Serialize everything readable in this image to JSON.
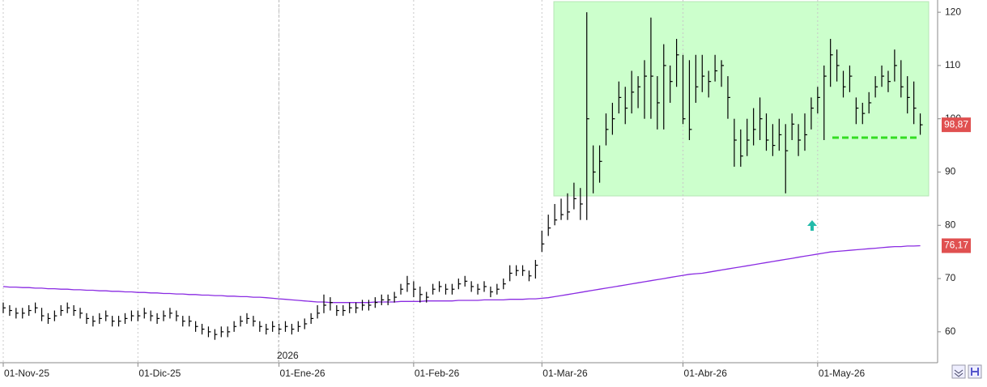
{
  "chart_data": {
    "type": "ohlc",
    "categories": [
      "01-Nov-25",
      null,
      null,
      null,
      null,
      null,
      null,
      null,
      null,
      null,
      null,
      null,
      null,
      null,
      null,
      null,
      null,
      null,
      null,
      null,
      null,
      "01-Dic-25",
      null,
      null,
      null,
      null,
      null,
      null,
      null,
      null,
      null,
      null,
      null,
      null,
      null,
      null,
      null,
      null,
      null,
      null,
      null,
      null,
      null,
      "01-Ene-26",
      null,
      null,
      null,
      null,
      null,
      null,
      null,
      null,
      null,
      null,
      null,
      null,
      null,
      null,
      null,
      null,
      null,
      null,
      null,
      null,
      "01-Feb-26",
      null,
      null,
      null,
      null,
      null,
      null,
      null,
      null,
      null,
      null,
      null,
      null,
      null,
      null,
      null,
      null,
      null,
      null,
      null,
      "01-Mar-26",
      null,
      null,
      null,
      null,
      null,
      null,
      null,
      null,
      null,
      null,
      null,
      null,
      null,
      null,
      null,
      null,
      null,
      null,
      null,
      null,
      null,
      "01-Abr-26",
      null,
      null,
      null,
      null,
      null,
      null,
      null,
      null,
      null,
      null,
      null,
      null,
      null,
      null,
      null,
      null,
      null,
      null,
      null,
      null,
      "01-May-26",
      null,
      null,
      null,
      null,
      null,
      null,
      null,
      null,
      null,
      null,
      null,
      null,
      null,
      null,
      null,
      null
    ],
    "high": [
      65.5,
      65,
      64.5,
      64.5,
      65,
      65.5,
      64.5,
      63.5,
      64,
      65,
      65.5,
      65,
      64.5,
      63.5,
      63,
      63.5,
      64,
      63,
      63,
      63.5,
      64,
      64,
      64.5,
      64,
      63.5,
      64,
      64.5,
      64,
      63,
      63,
      62,
      61.5,
      61,
      60.5,
      61,
      61,
      62,
      63,
      63.5,
      63,
      62,
      61.5,
      62,
      61.5,
      62,
      61.5,
      62,
      62.5,
      63.5,
      65,
      67,
      66.5,
      65,
      65,
      65.5,
      65.5,
      66,
      66,
      66.5,
      67,
      67,
      67.5,
      69,
      70.5,
      69.5,
      68.5,
      67.5,
      69,
      69.5,
      69,
      69,
      70,
      70.5,
      69.5,
      69,
      69.5,
      68.5,
      69,
      70,
      72.5,
      72.5,
      72.5,
      71.5,
      73.5,
      79,
      82,
      84,
      85,
      86,
      88,
      87,
      120,
      95,
      95,
      101,
      103,
      107,
      106,
      109,
      108,
      111,
      119,
      108,
      114,
      110,
      115,
      112,
      111,
      112,
      112,
      109,
      112,
      111,
      108,
      100,
      98,
      100,
      102,
      104,
      101,
      99,
      100,
      99,
      101,
      99,
      101,
      104,
      106,
      110,
      115,
      113,
      109,
      110,
      104,
      103,
      105,
      108,
      110,
      109,
      113,
      111,
      108,
      107,
      101
    ],
    "low": [
      63.5,
      63,
      62.5,
      62.5,
      63,
      63.5,
      62,
      61.5,
      62,
      63,
      63.5,
      63,
      62.5,
      61.5,
      61,
      61.5,
      62,
      61,
      61,
      61.5,
      62,
      62,
      62.5,
      62,
      61.5,
      62,
      62.5,
      62,
      61,
      61,
      60,
      59.5,
      59,
      58.5,
      59,
      59,
      60,
      61,
      61.5,
      61,
      60,
      59.5,
      60,
      59.5,
      60,
      59.5,
      60,
      60.5,
      61.5,
      62.5,
      63.5,
      64,
      63,
      63,
      63.5,
      63.5,
      64,
      64,
      64.5,
      65,
      65,
      65.5,
      67,
      67.5,
      66.5,
      65.5,
      65.5,
      67,
      67.5,
      67,
      67,
      68,
      68.5,
      67.5,
      67,
      67.5,
      66.5,
      67,
      68,
      69.5,
      70.5,
      70.5,
      69.5,
      70,
      75,
      78,
      80,
      81,
      81,
      83,
      81,
      81,
      86,
      88,
      95,
      97,
      101,
      99,
      101,
      102,
      100,
      100,
      98,
      98,
      103,
      106,
      99,
      96,
      103,
      105,
      104,
      107,
      106,
      100,
      91,
      91,
      93,
      95,
      96,
      94,
      93,
      94,
      86,
      96,
      93,
      94,
      98,
      101,
      96,
      106,
      107,
      104,
      105,
      99,
      99,
      101,
      104,
      106,
      105,
      107,
      104,
      101,
      99,
      97
    ],
    "close": [
      64.5,
      64,
      63.5,
      63.5,
      64,
      64.5,
      63,
      62.5,
      63,
      64,
      64.5,
      64,
      63.5,
      62.5,
      62,
      62.5,
      63,
      62,
      62,
      62.5,
      63,
      63,
      63.5,
      63,
      62.5,
      63,
      63.5,
      63,
      62,
      62,
      61,
      60.5,
      60,
      59.5,
      60,
      60,
      61,
      62,
      62.5,
      62,
      61,
      60.5,
      61,
      60.5,
      61,
      60.5,
      61,
      61.5,
      62.5,
      63.5,
      65,
      65.5,
      64,
      64,
      64.5,
      64.5,
      65,
      65,
      65.5,
      66,
      66,
      66.5,
      68,
      69,
      68,
      67,
      66.5,
      68,
      68.5,
      68,
      68,
      69,
      69.5,
      68.5,
      68,
      68.5,
      67.5,
      68,
      69,
      71,
      71.5,
      71.5,
      70.5,
      72.5,
      76.5,
      79.5,
      81,
      82,
      82.5,
      85,
      84,
      100,
      90,
      92,
      98,
      100,
      104,
      102,
      105,
      106,
      108,
      108,
      103,
      110,
      107,
      112,
      100,
      98,
      106,
      108,
      107,
      109,
      110,
      104,
      96,
      93,
      96,
      98,
      100,
      96,
      95,
      97,
      94,
      99,
      96,
      97,
      102,
      104,
      108,
      112,
      110,
      106,
      108,
      102,
      101,
      103,
      106,
      108,
      107,
      110,
      106,
      104,
      102,
      98.87
    ],
    "color": "#000000",
    "moving_average": {
      "color": "#8a2be2",
      "values": [
        68.5,
        68.4,
        68.4,
        68.3,
        68.3,
        68.2,
        68.2,
        68.1,
        68.1,
        68.0,
        68.0,
        67.9,
        67.9,
        67.8,
        67.8,
        67.7,
        67.7,
        67.6,
        67.6,
        67.5,
        67.5,
        67.4,
        67.4,
        67.3,
        67.3,
        67.2,
        67.2,
        67.1,
        67.1,
        67.0,
        67.0,
        66.9,
        66.9,
        66.8,
        66.8,
        66.7,
        66.7,
        66.6,
        66.6,
        66.5,
        66.5,
        66.4,
        66.3,
        66.2,
        66.1,
        66.0,
        65.9,
        65.8,
        65.7,
        65.6,
        65.6,
        65.5,
        65.5,
        65.5,
        65.5,
        65.5,
        65.5,
        65.5,
        65.6,
        65.6,
        65.6,
        65.6,
        65.7,
        65.7,
        65.7,
        65.7,
        65.8,
        65.8,
        65.8,
        65.8,
        65.8,
        65.9,
        65.9,
        65.9,
        65.9,
        66.0,
        66.0,
        66.0,
        66.0,
        66.1,
        66.1,
        66.1,
        66.2,
        66.2,
        66.3,
        66.4,
        66.6,
        66.8,
        67.0,
        67.2,
        67.4,
        67.6,
        67.8,
        68.0,
        68.2,
        68.4,
        68.6,
        68.8,
        69.0,
        69.2,
        69.4,
        69.6,
        69.8,
        70.0,
        70.2,
        70.4,
        70.6,
        70.8,
        70.9,
        71.0,
        71.2,
        71.4,
        71.6,
        71.8,
        72.0,
        72.2,
        72.4,
        72.6,
        72.8,
        73.0,
        73.2,
        73.4,
        73.6,
        73.8,
        74.0,
        74.2,
        74.4,
        74.6,
        74.8,
        75.0,
        75.1,
        75.2,
        75.3,
        75.4,
        75.5,
        75.6,
        75.7,
        75.8,
        75.9,
        76.0,
        76.0,
        76.1,
        76.1,
        76.17
      ]
    },
    "last_close_label": "98,87",
    "moving_average_label": "76,17",
    "year_marker": "2026",
    "ylim": [
      54.2,
      122.3
    ],
    "yticks": [
      60,
      70,
      80,
      90,
      100,
      110,
      120
    ],
    "grid": "vertical"
  }
}
